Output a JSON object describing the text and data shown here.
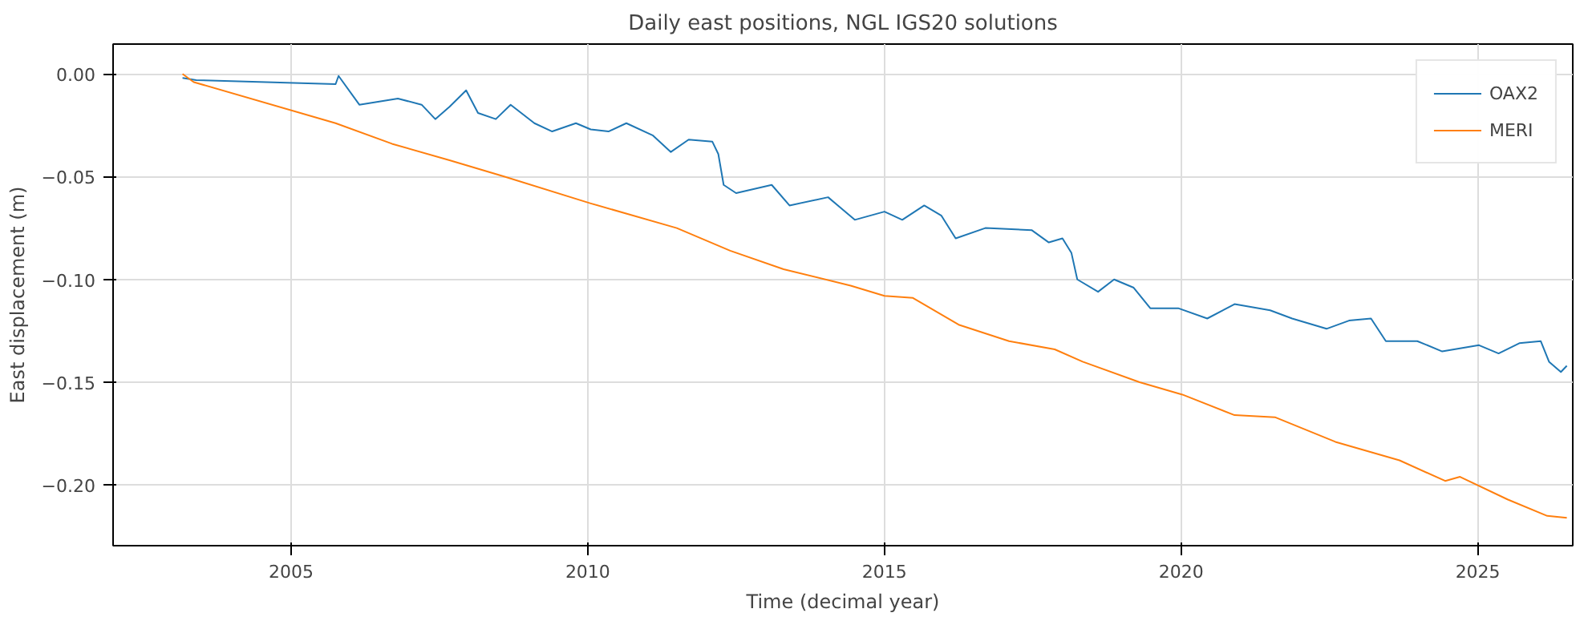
{
  "chart_data": {
    "type": "line",
    "title": "Daily east positions, NGL IGS20 solutions",
    "xlabel": "Time (decimal year)",
    "ylabel": "East displacement (m)",
    "xlim": [
      2002.0,
      2026.6
    ],
    "ylim": [
      -0.2295,
      0.0145
    ],
    "xticks": [
      2005,
      2010,
      2015,
      2020,
      2025
    ],
    "yticks": [
      {
        "value": 0,
        "label": "0.00"
      },
      {
        "value": -0.05,
        "label": "−0.05"
      },
      {
        "value": -0.1,
        "label": "−0.10"
      },
      {
        "value": -0.15,
        "label": "−0.15"
      },
      {
        "value": -0.2,
        "label": "−0.20"
      }
    ],
    "grid": true,
    "legend": "top right",
    "series": [
      {
        "name": "OAX2",
        "color": "#1f77b4",
        "x": [
          2003.17,
          2003.4,
          2005.75,
          2005.8,
          2006.15,
          2006.8,
          2007.2,
          2007.43,
          2007.67,
          2007.95,
          2008.15,
          2008.45,
          2008.7,
          2009.1,
          2009.4,
          2009.8,
          2010.05,
          2010.35,
          2010.65,
          2011.1,
          2011.4,
          2011.7,
          2012.1,
          2012.2,
          2012.29,
          2012.5,
          2013.1,
          2013.4,
          2014.05,
          2014.5,
          2015.0,
          2015.3,
          2015.67,
          2015.96,
          2016.2,
          2016.7,
          2017.48,
          2017.77,
          2018.0,
          2018.15,
          2018.25,
          2018.6,
          2018.87,
          2019.2,
          2019.48,
          2019.95,
          2020.44,
          2020.9,
          2021.5,
          2021.87,
          2022.45,
          2022.83,
          2023.2,
          2023.45,
          2023.98,
          2024.4,
          2025.02,
          2025.35,
          2025.7,
          2026.06,
          2026.2,
          2026.4,
          2026.5
        ],
        "values": [
          -0.002,
          -0.003,
          -0.005,
          -0.001,
          -0.015,
          -0.012,
          -0.015,
          -0.022,
          -0.016,
          -0.008,
          -0.019,
          -0.022,
          -0.015,
          -0.024,
          -0.028,
          -0.024,
          -0.027,
          -0.028,
          -0.024,
          -0.03,
          -0.038,
          -0.032,
          -0.033,
          -0.039,
          -0.054,
          -0.058,
          -0.054,
          -0.064,
          -0.06,
          -0.071,
          -0.067,
          -0.071,
          -0.064,
          -0.069,
          -0.08,
          -0.075,
          -0.076,
          -0.082,
          -0.08,
          -0.087,
          -0.1,
          -0.106,
          -0.1,
          -0.104,
          -0.114,
          -0.114,
          -0.119,
          -0.112,
          -0.115,
          -0.119,
          -0.124,
          -0.12,
          -0.119,
          -0.13,
          -0.13,
          -0.135,
          -0.132,
          -0.136,
          -0.131,
          -0.13,
          -0.14,
          -0.145,
          -0.142
        ]
      },
      {
        "name": "MERI",
        "color": "#ff7f0e",
        "x": [
          2003.17,
          2003.36,
          2005.75,
          2006.7,
          2007.67,
          2008.6,
          2010.05,
          2011.5,
          2012.4,
          2013.3,
          2014.43,
          2015.0,
          2015.48,
          2016.25,
          2017.1,
          2017.87,
          2018.34,
          2019.3,
          2020.02,
          2020.9,
          2021.58,
          2022.6,
          2023.68,
          2024.45,
          2024.7,
          2025.5,
          2026.17,
          2026.5
        ],
        "values": [
          0.0,
          -0.004,
          -0.024,
          -0.034,
          -0.042,
          -0.05,
          -0.063,
          -0.075,
          -0.086,
          -0.095,
          -0.103,
          -0.108,
          -0.109,
          -0.122,
          -0.13,
          -0.134,
          -0.14,
          -0.15,
          -0.156,
          -0.166,
          -0.167,
          -0.179,
          -0.188,
          -0.198,
          -0.196,
          -0.207,
          -0.215,
          -0.216
        ]
      }
    ]
  }
}
